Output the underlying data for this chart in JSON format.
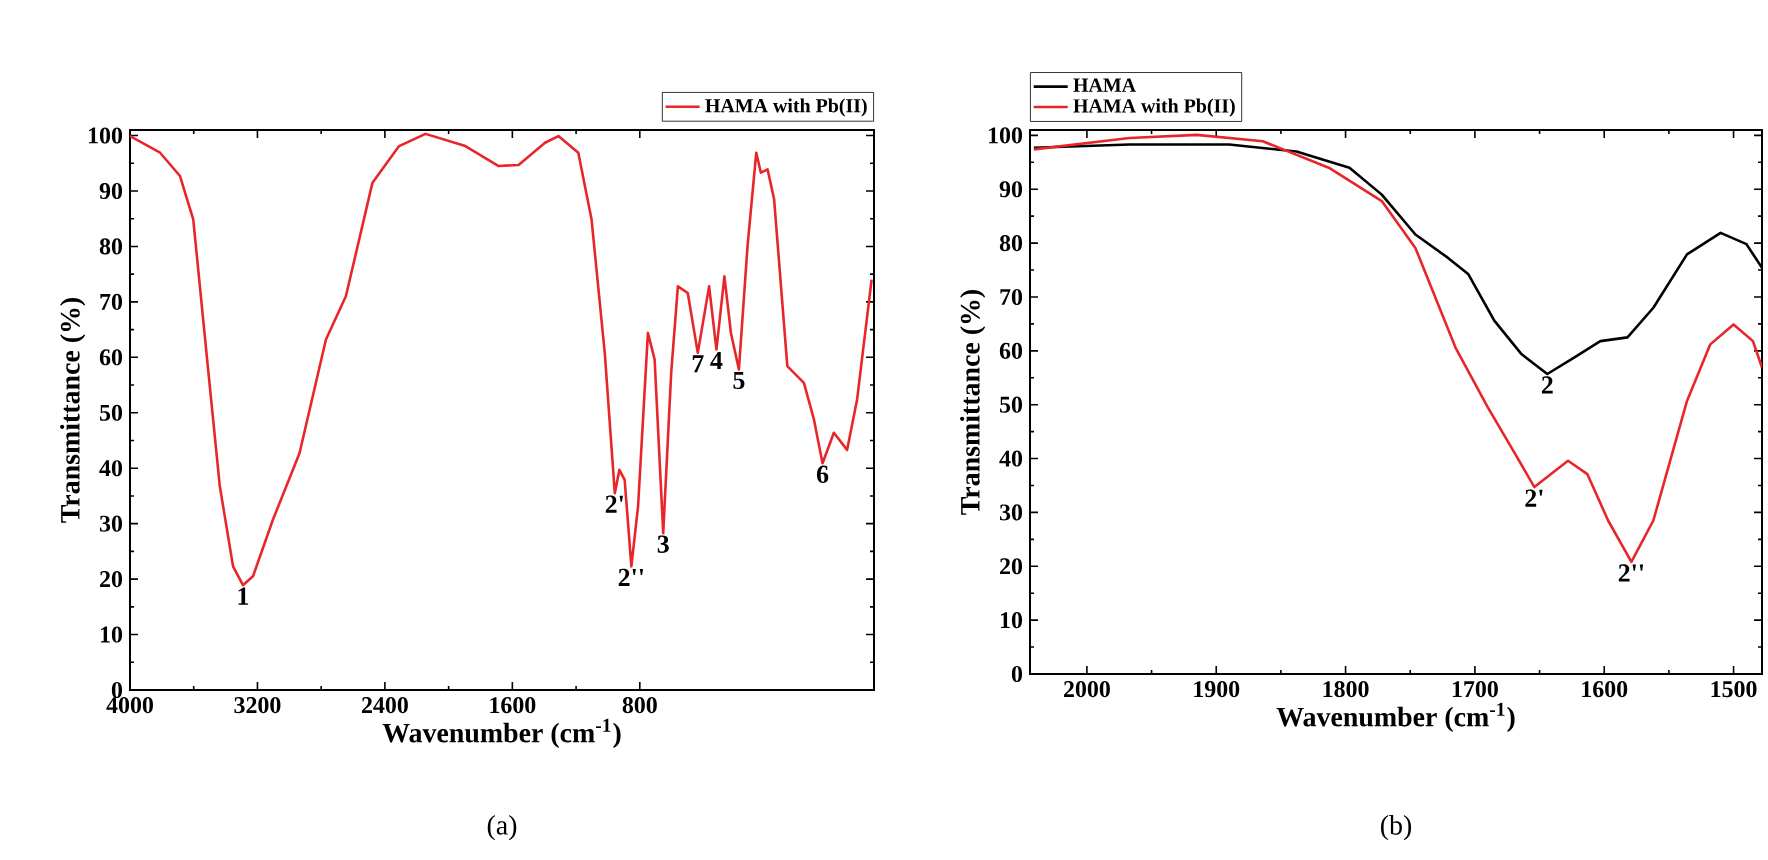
{
  "chart_data": [
    {
      "type": "line",
      "xlabel": "Wavenumber (cm$^{-1}$)",
      "ylabel": "Transmittance (%)",
      "xlim": [
        4000,
        -670
      ],
      "ylim": [
        0,
        101
      ],
      "xticks": [
        4000,
        3200,
        2400,
        1600,
        800
      ],
      "yticks": [
        0,
        10,
        20,
        30,
        40,
        50,
        60,
        70,
        80,
        90,
        100
      ],
      "legend": "top right",
      "series": [
        {
          "name": "HAMA with Pb(II)",
          "color": "#e8262a",
          "x": [
            4000,
            3811,
            3686,
            3603,
            3520,
            3436,
            3353,
            3291,
            3228,
            3103,
            2936,
            2770,
            2645,
            2478,
            2311,
            2145,
            1895,
            1686,
            1561,
            1395,
            1311,
            1186,
            1103,
            1020,
            957,
            928,
            895,
            853,
            811,
            749,
            707,
            653,
            603,
            561,
            499,
            436,
            365,
            319,
            269,
            228,
            178,
            124,
            69,
            40,
            -2,
            -43,
            -126,
            -230,
            -293,
            -347,
            -418,
            -501,
            -564,
            -655
          ],
          "values": [
            99.9,
            96.9,
            92.7,
            84.9,
            60.8,
            36.7,
            22.3,
            18.9,
            20.5,
            30.7,
            42.7,
            63.2,
            71.0,
            91.5,
            98.1,
            100.3,
            98.1,
            94.5,
            94.7,
            98.7,
            99.9,
            96.9,
            84.9,
            60.8,
            35.5,
            39.7,
            37.9,
            22.3,
            33.1,
            64.4,
            59.6,
            28.3,
            57.2,
            72.8,
            71.6,
            60.8,
            72.8,
            61.4,
            74.6,
            64.4,
            57.8,
            80.0,
            96.9,
            93.3,
            93.9,
            88.5,
            58.4,
            55.4,
            48.8,
            40.9,
            46.4,
            43.3,
            52.4,
            74.0
          ]
        }
      ],
      "annotations": [
        {
          "text": "1",
          "x": 3291,
          "y": 18.9
        },
        {
          "text": "2'",
          "x": 957,
          "y": 35.5
        },
        {
          "text": "2''",
          "x": 853,
          "y": 22.3
        },
        {
          "text": "3",
          "x": 653,
          "y": 28.3
        },
        {
          "text": "7",
          "x": 436,
          "y": 60.8
        },
        {
          "text": "4",
          "x": 319,
          "y": 61.4
        },
        {
          "text": "5",
          "x": 178,
          "y": 57.8
        },
        {
          "text": "6",
          "x": -347,
          "y": 40.9
        },
        "(a)"
      ]
    },
    {
      "type": "line",
      "xlabel": "Wavenumber (cm$^{-1}$)",
      "ylabel": "Transmittance (%)",
      "xlim": [
        2044,
        1478
      ],
      "ylim": [
        0,
        101
      ],
      "xticks": [
        2000,
        1900,
        1800,
        1700,
        1600,
        1500
      ],
      "yticks": [
        0,
        10,
        20,
        30,
        40,
        50,
        60,
        70,
        80,
        90,
        100
      ],
      "legend": "top left",
      "series": [
        {
          "name": "HAMA",
          "color": "#000000",
          "x": [
            2041,
            1967,
            1890,
            1838,
            1797,
            1772,
            1746,
            1721,
            1705,
            1685,
            1664,
            1644,
            1623,
            1603,
            1582,
            1562,
            1536,
            1510,
            1490,
            1478
          ],
          "values": [
            97.7,
            98.3,
            98.3,
            97.0,
            94.0,
            89.0,
            81.6,
            77.3,
            74.2,
            65.6,
            59.4,
            55.7,
            58.8,
            61.8,
            62.5,
            68.0,
            77.9,
            81.9,
            79.8,
            75.4
          ]
        },
        {
          "name": "HAMA with Pb(II)",
          "color": "#e8262a",
          "x": [
            2041,
            1967,
            1915,
            1864,
            1813,
            1772,
            1746,
            1715,
            1690,
            1669,
            1654,
            1628,
            1613,
            1597,
            1579,
            1562,
            1536,
            1518,
            1500,
            1485,
            1478
          ],
          "values": [
            97.4,
            99.5,
            100.1,
            98.9,
            94.0,
            87.8,
            79.1,
            60.6,
            49.5,
            40.9,
            34.7,
            39.6,
            37.1,
            28.5,
            20.8,
            28.5,
            50.7,
            61.2,
            64.9,
            61.8,
            56.9
          ]
        }
      ],
      "annotations": [
        {
          "text": "2",
          "x": 1644,
          "y": 55.7
        },
        {
          "text": "2'",
          "x": 1654,
          "y": 34.7
        },
        {
          "text": "2''",
          "x": 1579,
          "y": 20.8
        },
        "(b)"
      ]
    }
  ]
}
